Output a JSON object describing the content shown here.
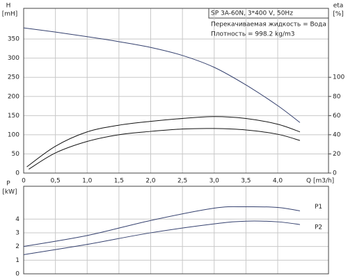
{
  "chart_data": [
    {
      "type": "line",
      "ylabel": "H",
      "yunit": "[mH]",
      "y2label": "eta",
      "y2unit": "[%]",
      "xlabel": "Q [m3/h]",
      "annotations": [
        "SP 3A-60N, 3*400 V, 50Hz",
        "Перекачиваемая жидкость = Вода",
        "Плотность = 998.2 kg/m3"
      ],
      "xlim": [
        0,
        4.8
      ],
      "ylim": [
        0,
        430
      ],
      "y2lim": [
        0,
        172
      ],
      "xticks": [
        0,
        {
          "value": 0.5,
          "label": "0,5"
        },
        {
          "value": 1,
          "label": "1,0"
        },
        {
          "value": 1.5,
          "label": "1,5"
        },
        {
          "value": 2,
          "label": "2,0"
        },
        {
          "value": 2.5,
          "label": "2,5"
        },
        {
          "value": 3,
          "label": "3,0"
        },
        {
          "value": 3.5,
          "label": "3,5"
        },
        {
          "value": 4,
          "label": "4,0"
        }
      ],
      "yticks": [
        0,
        50,
        100,
        150,
        200,
        250,
        300,
        350
      ],
      "y2ticks": [
        0,
        20,
        40,
        60,
        80,
        100
      ],
      "grid": true,
      "series": [
        {
          "color": "#34406e",
          "x": [
            0,
            0.5,
            1,
            1.5,
            2,
            2.5,
            3,
            3.5,
            4,
            4.35
          ],
          "values": [
            379,
            368,
            356,
            343,
            328,
            307,
            276,
            230,
            176,
            132
          ]
        },
        {
          "color": "#111111",
          "axis": "y2",
          "x": [
            0.05,
            0.5,
            1,
            1.5,
            2,
            2.5,
            3,
            3.5,
            4,
            4.35
          ],
          "values": [
            6.5,
            28,
            43,
            50,
            54,
            57,
            59,
            57,
            51,
            43
          ]
        },
        {
          "color": "#111111",
          "axis": "y2",
          "x": [
            0.08,
            0.5,
            1,
            1.5,
            2,
            2.5,
            3,
            3.5,
            4,
            4.35
          ],
          "values": [
            4,
            21,
            33,
            40,
            43.5,
            46,
            46.5,
            45,
            40.5,
            34
          ]
        }
      ]
    },
    {
      "type": "line",
      "ylabel": "P",
      "yunit": "[kW]",
      "xlim": [
        0,
        4.8
      ],
      "ylim": [
        0,
        6.4
      ],
      "xticks": [
        0,
        0.5,
        1,
        1.5,
        2,
        2.5,
        3,
        3.5,
        4
      ],
      "yticks": [
        0,
        1,
        2,
        3,
        4
      ],
      "grid": true,
      "series": [
        {
          "name": "P1",
          "color": "#34406e",
          "x": [
            0,
            1,
            2,
            3,
            3.5,
            4,
            4.35
          ],
          "values": [
            2.0,
            2.8,
            3.9,
            4.8,
            4.9,
            4.85,
            4.6
          ]
        },
        {
          "name": "P2",
          "color": "#34406e",
          "x": [
            0,
            1,
            2,
            3,
            3.5,
            4,
            4.35
          ],
          "values": [
            1.4,
            2.15,
            3.0,
            3.65,
            3.85,
            3.8,
            3.6
          ]
        }
      ]
    }
  ]
}
